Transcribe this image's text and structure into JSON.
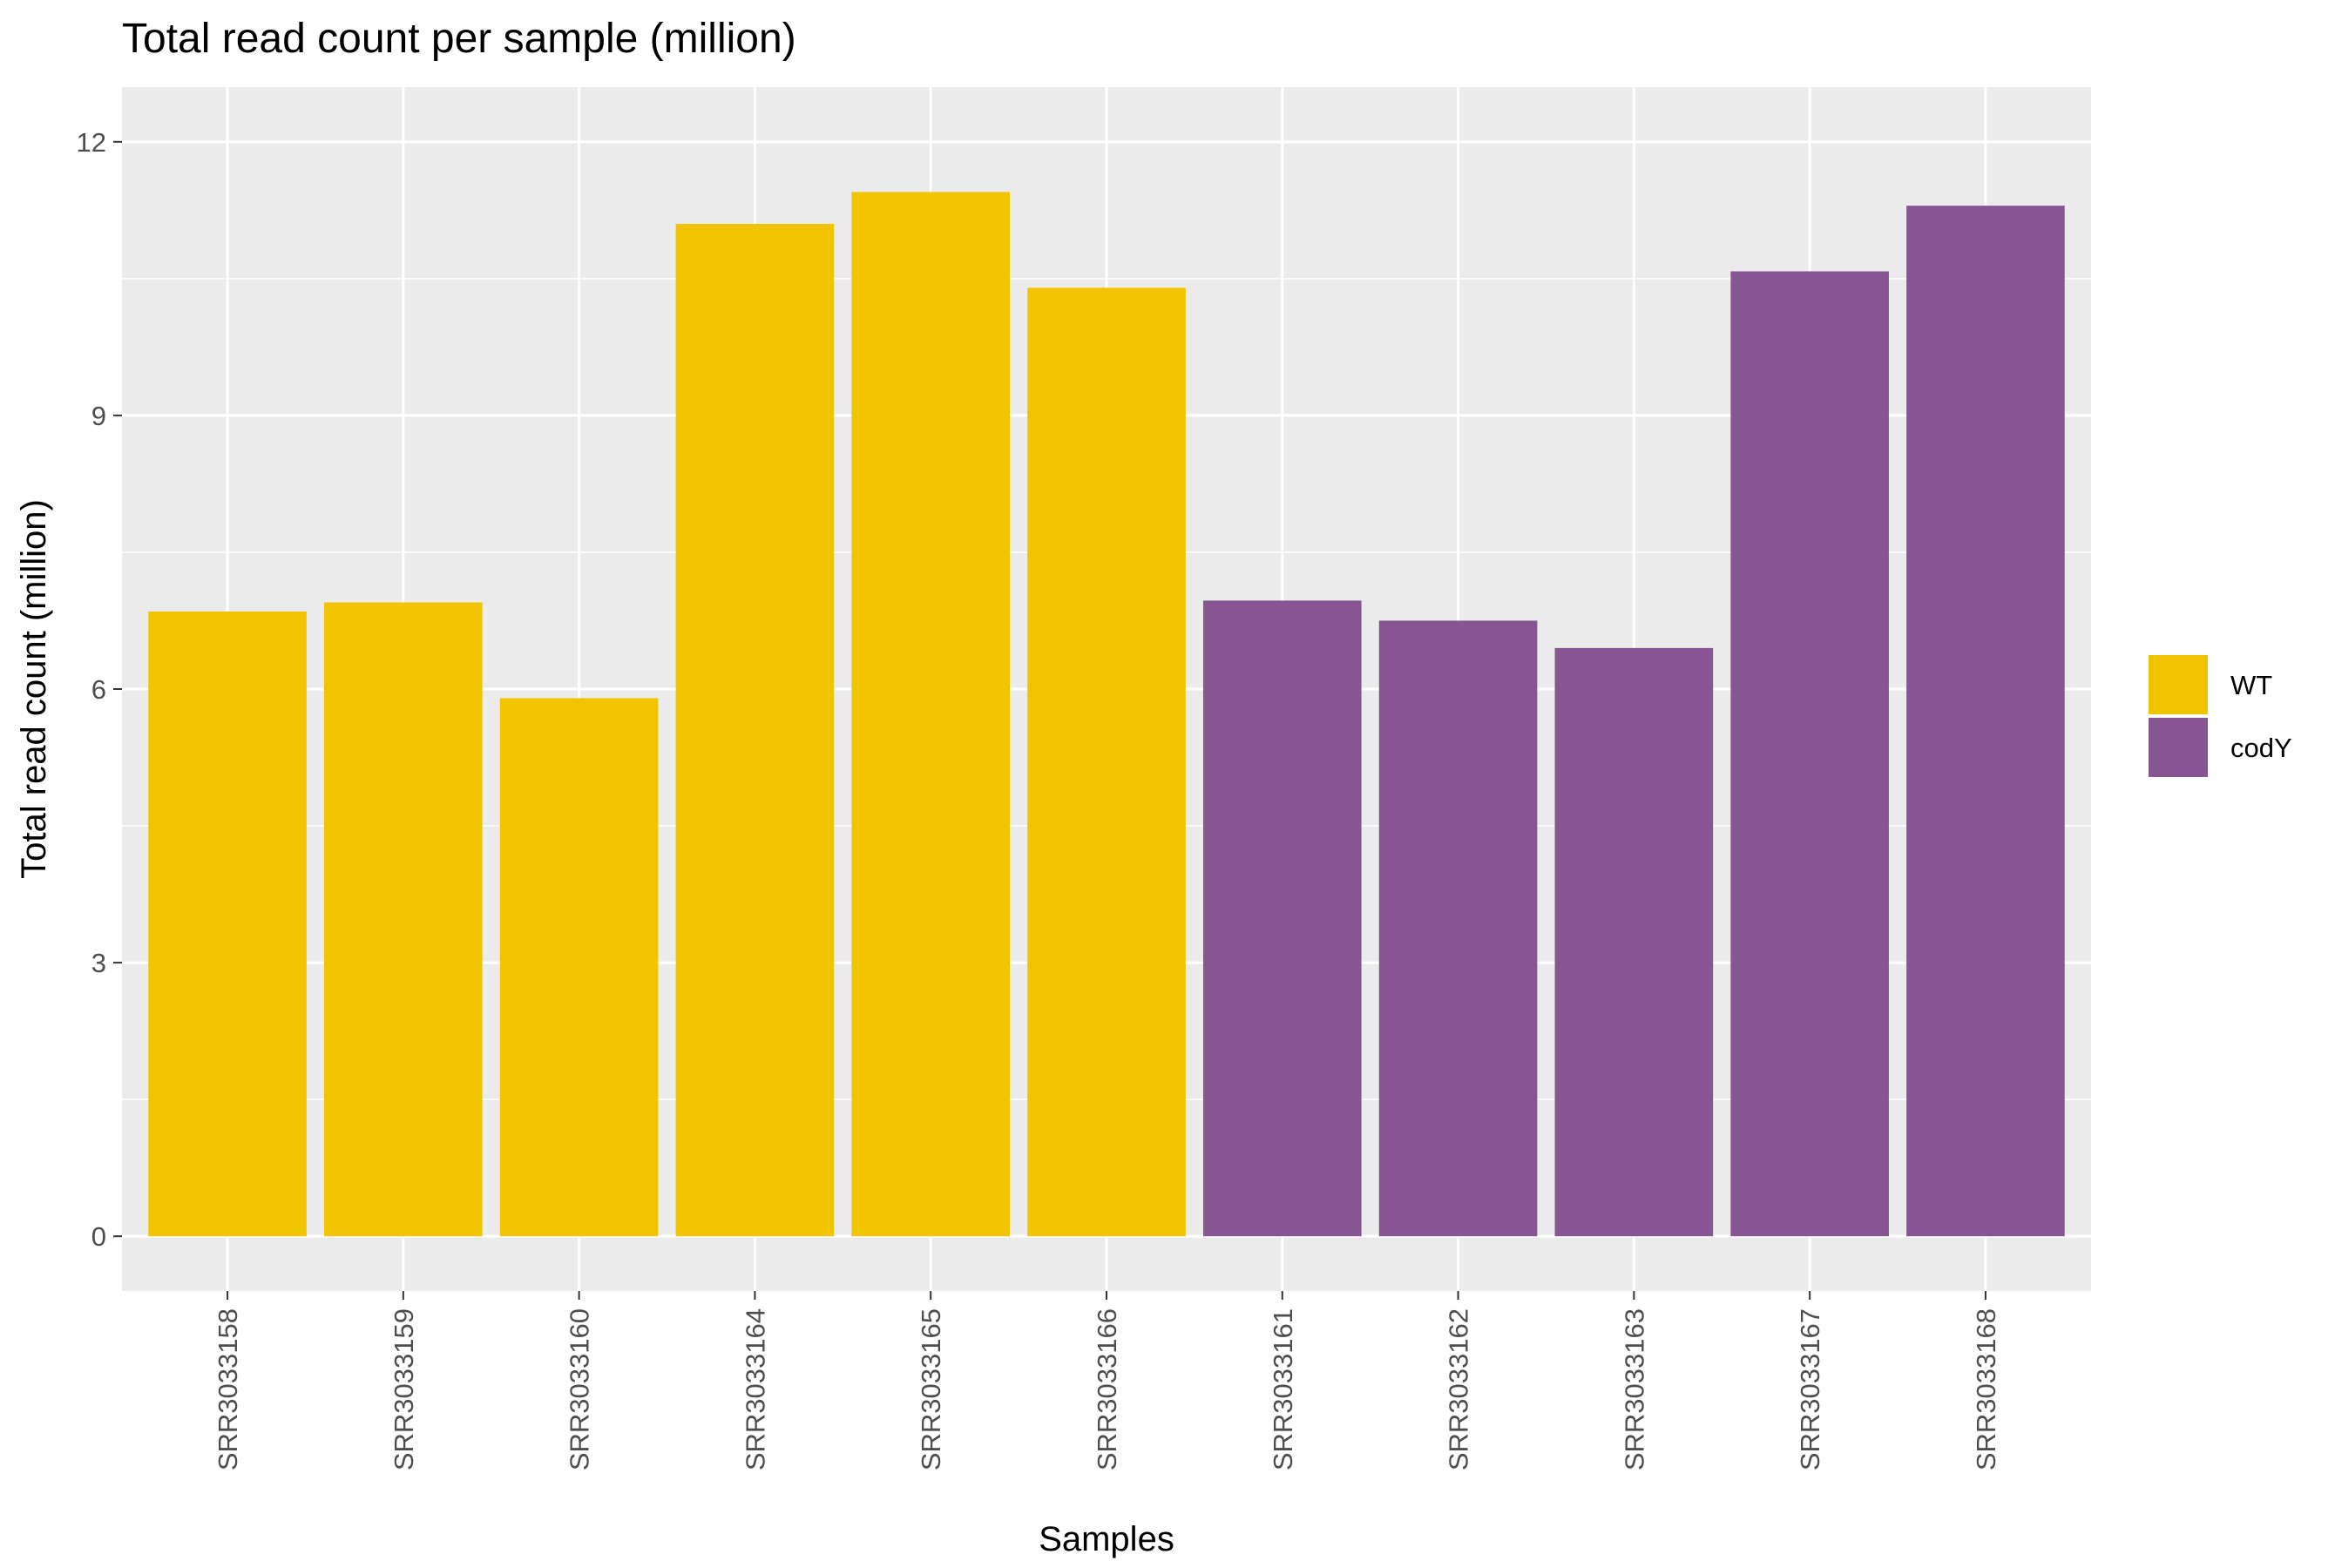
{
  "chart_data": {
    "type": "bar",
    "title": "Total read count per sample (million)",
    "xlabel": "Samples",
    "ylabel": "Total read count (million)",
    "ylim": [
      0,
      12
    ],
    "yticks": [
      0,
      3,
      6,
      9,
      12
    ],
    "grid": true,
    "legend_position": "right",
    "categories": [
      "SRR3033158",
      "SRR3033159",
      "SRR3033160",
      "SRR3033164",
      "SRR3033165",
      "SRR3033166",
      "SRR3033161",
      "SRR3033162",
      "SRR3033163",
      "SRR3033167",
      "SRR3033168"
    ],
    "values": [
      6.85,
      6.95,
      5.9,
      11.1,
      11.45,
      10.4,
      6.97,
      6.75,
      6.45,
      10.58,
      11.3
    ],
    "groups": [
      "WT",
      "WT",
      "WT",
      "WT",
      "WT",
      "WT",
      "codY",
      "codY",
      "codY",
      "codY",
      "codY"
    ],
    "legend": [
      {
        "name": "WT",
        "color": "#F2C300"
      },
      {
        "name": "codY",
        "color": "#875692"
      }
    ],
    "panel_color": "#EBEBEB",
    "grid_color": "#FFFFFF"
  }
}
